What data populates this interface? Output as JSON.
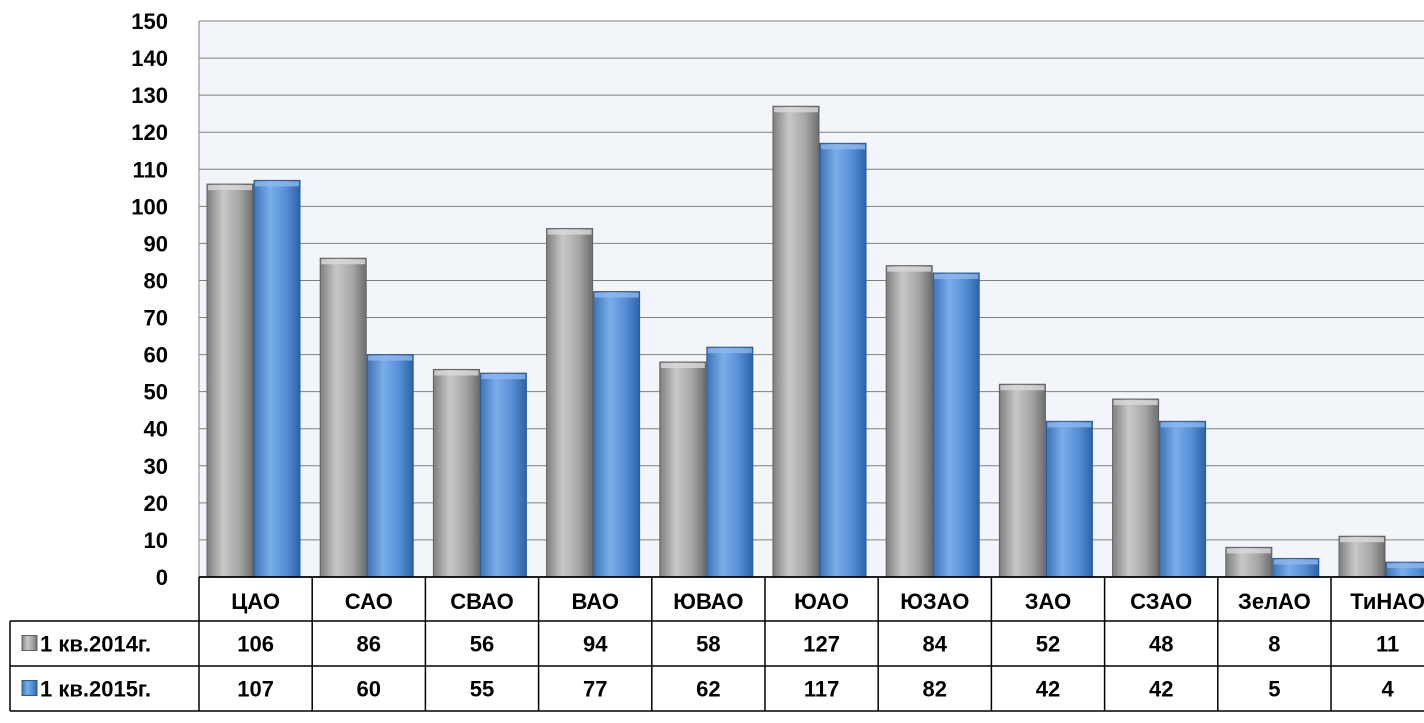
{
  "chart_data": {
    "type": "bar",
    "categories": [
      "ЦАО",
      "САО",
      "СВАО",
      "ВАО",
      "ЮВАО",
      "ЮАО",
      "ЮЗАО",
      "ЗАО",
      "СЗАО",
      "ЗелАО",
      "ТиНАО"
    ],
    "series": [
      {
        "name": "1 кв.2014г.",
        "values": [
          106,
          86,
          56,
          94,
          58,
          127,
          84,
          52,
          48,
          8,
          11
        ],
        "color": "#a6a6a6"
      },
      {
        "name": "1 кв.2015г.",
        "values": [
          107,
          60,
          55,
          77,
          62,
          117,
          82,
          42,
          42,
          5,
          4
        ],
        "color": "#558ed5"
      }
    ],
    "ylim": [
      0,
      150
    ],
    "ytick_step": 10,
    "grid": true,
    "legend": "data-table",
    "plot_background": "#f2f6fb",
    "grid_color": "#7f7f7f"
  }
}
